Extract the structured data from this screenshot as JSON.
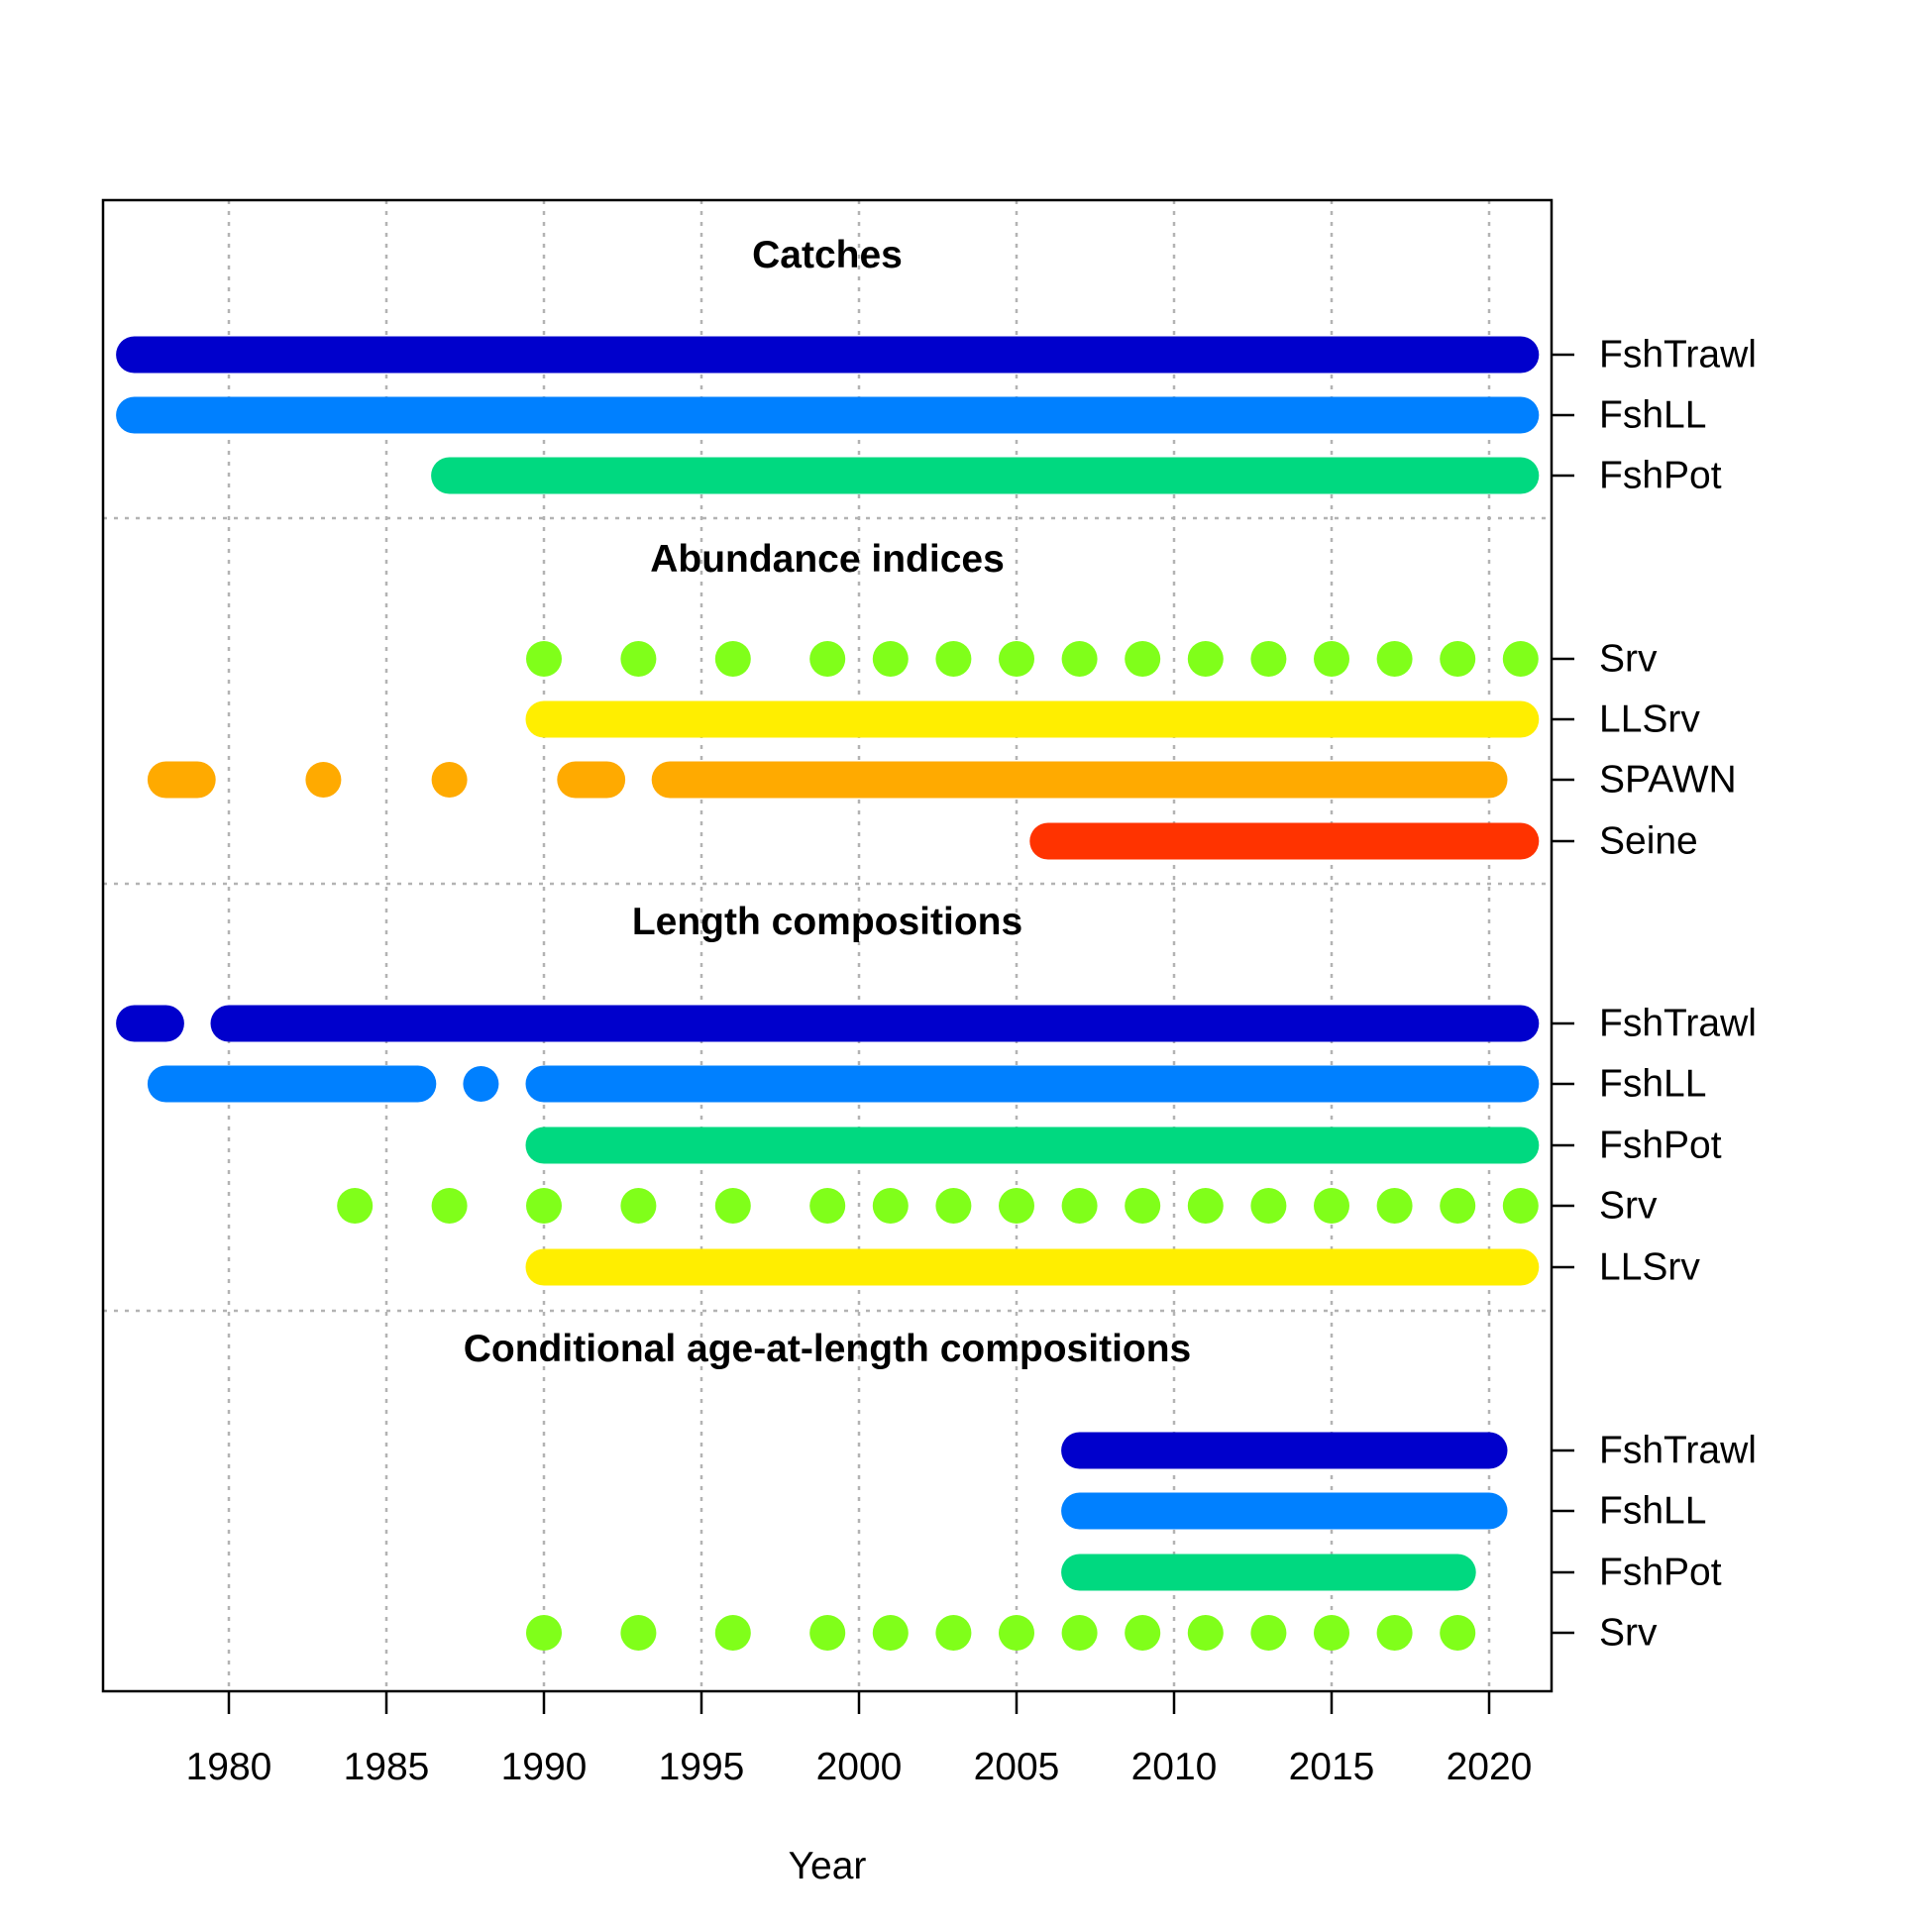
{
  "chart_data": {
    "type": "timeline",
    "xlabel": "Year",
    "xlim": [
      1976,
      2022
    ],
    "x_ticks": [
      1980,
      1985,
      1990,
      1995,
      2000,
      2005,
      2010,
      2015,
      2020
    ],
    "grid": true,
    "sections": [
      {
        "title": "Catches",
        "rows": [
          {
            "name": "FshTrawl",
            "color": "#0000CC",
            "years": [
              [
                1977,
                2021
              ]
            ]
          },
          {
            "name": "FshLL",
            "color": "#0080FF",
            "years": [
              [
                1977,
                2021
              ]
            ]
          },
          {
            "name": "FshPot",
            "color": "#00D980",
            "years": [
              [
                1987,
                2021
              ]
            ]
          }
        ]
      },
      {
        "title": "Abundance indices",
        "rows": [
          {
            "name": "Srv",
            "color": "#80FF1A",
            "years": [
              1990,
              1993,
              1996,
              1999,
              2001,
              2003,
              2005,
              2007,
              2009,
              2011,
              2013,
              2015,
              2017,
              2019,
              2021
            ]
          },
          {
            "name": "LLSrv",
            "color": "#FFEE00",
            "years": [
              [
                1990,
                2021
              ]
            ]
          },
          {
            "name": "SPAWN",
            "color": "#FFAA00",
            "years": [
              [
                1978,
                1979
              ],
              1983,
              1987,
              [
                1991,
                1992
              ],
              [
                1994,
                2020
              ]
            ]
          },
          {
            "name": "Seine",
            "color": "#FF3300",
            "years": [
              [
                2006,
                2021
              ]
            ]
          }
        ]
      },
      {
        "title": "Length compositions",
        "rows": [
          {
            "name": "FshTrawl",
            "color": "#0000CC",
            "years": [
              [
                1977,
                1978
              ],
              [
                1980,
                2021
              ]
            ]
          },
          {
            "name": "FshLL",
            "color": "#0080FF",
            "years": [
              [
                1978,
                1986
              ],
              1988,
              [
                1990,
                2021
              ]
            ]
          },
          {
            "name": "FshPot",
            "color": "#00D980",
            "years": [
              [
                1990,
                2021
              ]
            ]
          },
          {
            "name": "Srv",
            "color": "#80FF1A",
            "years": [
              1984,
              1987,
              1990,
              1993,
              1996,
              1999,
              2001,
              2003,
              2005,
              2007,
              2009,
              2011,
              2013,
              2015,
              2017,
              2019,
              2021
            ]
          },
          {
            "name": "LLSrv",
            "color": "#FFEE00",
            "years": [
              [
                1990,
                2021
              ]
            ]
          }
        ]
      },
      {
        "title": "Conditional age-at-length compositions",
        "rows": [
          {
            "name": "FshTrawl",
            "color": "#0000CC",
            "years": [
              [
                2007,
                2020
              ]
            ]
          },
          {
            "name": "FshLL",
            "color": "#0080FF",
            "years": [
              [
                2007,
                2020
              ]
            ]
          },
          {
            "name": "FshPot",
            "color": "#00D980",
            "years": [
              [
                2007,
                2019
              ]
            ]
          },
          {
            "name": "Srv",
            "color": "#80FF1A",
            "years": [
              1990,
              1993,
              1996,
              1999,
              2001,
              2003,
              2005,
              2007,
              2009,
              2011,
              2013,
              2015,
              2017,
              2019
            ]
          }
        ]
      }
    ]
  }
}
